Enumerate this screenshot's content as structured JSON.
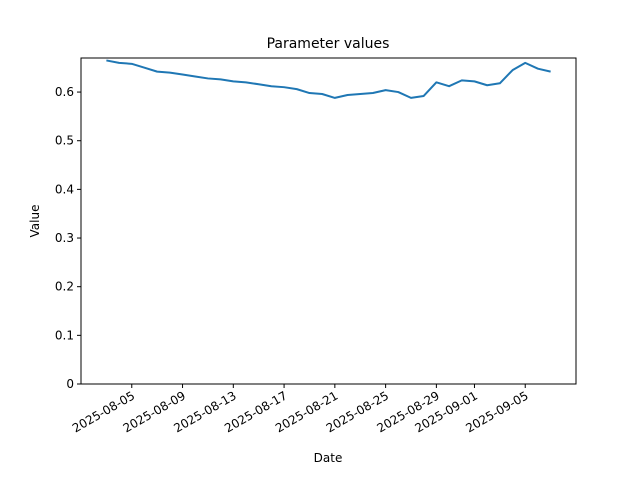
{
  "chart_data": {
    "type": "line",
    "title": "Parameter values",
    "xlabel": "Date",
    "ylabel": "Value",
    "x": [
      "2025-08-03",
      "2025-08-04",
      "2025-08-05",
      "2025-08-06",
      "2025-08-07",
      "2025-08-08",
      "2025-08-09",
      "2025-08-10",
      "2025-08-11",
      "2025-08-12",
      "2025-08-13",
      "2025-08-14",
      "2025-08-15",
      "2025-08-16",
      "2025-08-17",
      "2025-08-18",
      "2025-08-19",
      "2025-08-20",
      "2025-08-21",
      "2025-08-22",
      "2025-08-23",
      "2025-08-24",
      "2025-08-25",
      "2025-08-26",
      "2025-08-27",
      "2025-08-28",
      "2025-08-29",
      "2025-08-30",
      "2025-08-31",
      "2025-09-01",
      "2025-09-02",
      "2025-09-03",
      "2025-09-04",
      "2025-09-05",
      "2025-09-06",
      "2025-09-07"
    ],
    "series": [
      {
        "color": "#1f77b4",
        "values": [
          0.665,
          0.66,
          0.658,
          0.65,
          0.642,
          0.64,
          0.636,
          0.632,
          0.628,
          0.626,
          0.622,
          0.62,
          0.616,
          0.612,
          0.61,
          0.606,
          0.598,
          0.596,
          0.588,
          0.594,
          0.596,
          0.598,
          0.604,
          0.6,
          0.588,
          0.592,
          0.62,
          0.612,
          0.624,
          0.622,
          0.614,
          0.618,
          0.645,
          0.66,
          0.648,
          0.642
        ]
      }
    ],
    "xlim": [
      "2025-08-01",
      "2025-09-09"
    ],
    "xticks": [
      "2025-08-05",
      "2025-08-09",
      "2025-08-13",
      "2025-08-17",
      "2025-08-21",
      "2025-08-25",
      "2025-08-29",
      "2025-09-01",
      "2025-09-05"
    ],
    "ylim": [
      0,
      0.67
    ],
    "yticks": [
      0.0,
      0.1,
      0.2,
      0.3,
      0.4,
      0.5,
      0.6
    ]
  }
}
